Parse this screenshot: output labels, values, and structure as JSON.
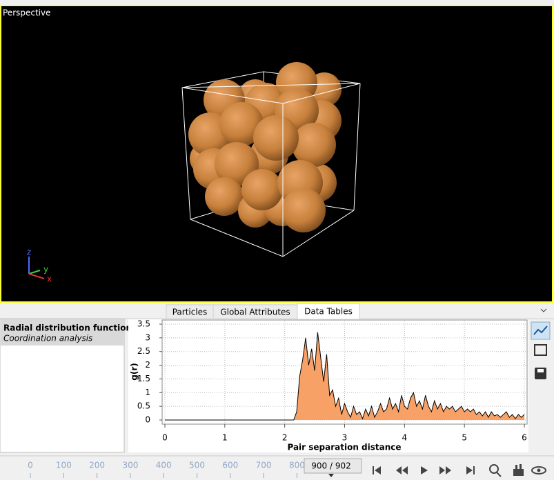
{
  "viewport": {
    "label": "Perspective",
    "axes": [
      "z",
      "y",
      "x"
    ]
  },
  "tabs": [
    "Particles",
    "Global Attributes",
    "Data Tables"
  ],
  "table_list": [
    {
      "title": "Radial distribution function",
      "subtitle": "Coordination analysis"
    }
  ],
  "chart_data": {
    "type": "area",
    "xlabel": "Pair separation distance",
    "ylabel": "g(r)",
    "color": "#f7a166",
    "line_color": "#000000",
    "grid": true,
    "xlim": [
      0,
      6
    ],
    "ylim": [
      0,
      3.5
    ],
    "xticks": [
      0,
      1,
      2,
      3,
      4,
      5,
      6
    ],
    "yticks": [
      0,
      0.5,
      1,
      1.5,
      2,
      2.5,
      3,
      3.5
    ],
    "x": [
      0,
      1,
      2,
      2.15,
      2.2,
      2.25,
      2.3,
      2.35,
      2.4,
      2.45,
      2.5,
      2.55,
      2.6,
      2.65,
      2.7,
      2.75,
      2.8,
      2.85,
      2.9,
      2.95,
      3,
      3.05,
      3.1,
      3.15,
      3.2,
      3.25,
      3.3,
      3.35,
      3.4,
      3.45,
      3.5,
      3.55,
      3.6,
      3.65,
      3.7,
      3.75,
      3.8,
      3.85,
      3.9,
      3.95,
      4,
      4.05,
      4.1,
      4.15,
      4.2,
      4.25,
      4.3,
      4.35,
      4.4,
      4.45,
      4.5,
      4.55,
      4.6,
      4.65,
      4.7,
      4.75,
      4.8,
      4.85,
      4.9,
      4.95,
      5,
      5.05,
      5.1,
      5.15,
      5.2,
      5.25,
      5.3,
      5.35,
      5.4,
      5.45,
      5.5,
      5.55,
      5.6,
      5.65,
      5.7,
      5.75,
      5.8,
      5.85,
      5.9,
      5.95,
      6
    ],
    "values": [
      0,
      0,
      0,
      0,
      0.3,
      1.6,
      2.2,
      3.0,
      2.0,
      2.6,
      1.8,
      3.2,
      2.3,
      1.4,
      2.4,
      0.9,
      1.1,
      0.5,
      0.8,
      0.2,
      0.6,
      0.3,
      0.1,
      0.5,
      0.2,
      0.3,
      0.05,
      0.4,
      0.15,
      0.5,
      0.1,
      0.3,
      0.6,
      0.3,
      0.4,
      0.8,
      0.4,
      0.6,
      0.3,
      0.9,
      0.5,
      0.4,
      0.8,
      1.0,
      0.5,
      0.7,
      0.4,
      0.9,
      0.5,
      0.3,
      0.7,
      0.4,
      0.6,
      0.3,
      0.5,
      0.4,
      0.5,
      0.3,
      0.4,
      0.5,
      0.3,
      0.4,
      0.3,
      0.4,
      0.2,
      0.3,
      0.15,
      0.3,
      0.1,
      0.3,
      0.15,
      0.2,
      0.1,
      0.2,
      0.3,
      0.1,
      0.2,
      0.05,
      0.2,
      0.1,
      0.2
    ]
  },
  "timeline": {
    "ticks": [
      0,
      100,
      200,
      300,
      400,
      500,
      600,
      700,
      800
    ],
    "frame": "900 / 902"
  }
}
